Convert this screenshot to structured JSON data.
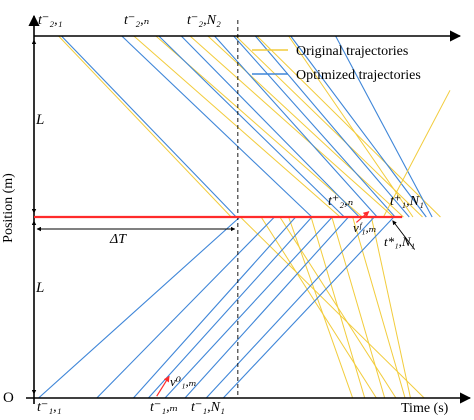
{
  "chart_data": {
    "type": "line",
    "title": "",
    "xlabel": "Time (s)",
    "ylabel": "Position (m)",
    "origin_label": "O",
    "axes": {
      "x_range": [
        0,
        100
      ],
      "y_range": [
        0,
        100
      ],
      "grid": false,
      "ticks_numeric": false
    },
    "legend": {
      "placement": "top-right",
      "entries": [
        {
          "name": "Original trajectories",
          "color": "#f2cc3c"
        },
        {
          "name": "Optimized trajectories",
          "color": "#3f86d8"
        }
      ]
    },
    "colors": {
      "stop_line": "#ff2b2b",
      "axis": "#000000",
      "original": "#f2cc3c",
      "optimized": "#3f86d8"
    },
    "stop_line_y": 50,
    "dashed_x": 49,
    "top_y": 100,
    "annotations": {
      "t_2_1": "t⁻₂,₁",
      "t_2_n": "t⁻₂,ₙ",
      "t_2_N2": "t⁻₂,N₂",
      "t_1_1": "t⁻₁,₁",
      "t_1_m": "t⁻₁,ₘ",
      "t_1_N1": "t⁻₁,N₁",
      "t2n_plus": "t⁺₂,ₙ",
      "t1N1_plus": "t⁺₁,N₁",
      "v1m_f": "vᶠ₁,ₘ",
      "v1m_0": "v⁰₁,ₘ",
      "t1N1_star": "t*₁,N₁",
      "L_top": "L",
      "L_bottom": "L",
      "delta_T": "ΔT"
    },
    "series": [
      {
        "name": "Original trajectories",
        "lines": [
          [
            [
              5.9,
              100
            ],
            [
              47.4,
              50
            ]
          ],
          [
            [
              24,
              100
            ],
            [
              73.6,
              50
            ]
          ],
          [
            [
              29.3,
              100
            ],
            [
              78.9,
              50
            ]
          ],
          [
            [
              37.5,
              100
            ],
            [
              86.4,
              50
            ]
          ],
          [
            [
              41.8,
              100
            ],
            [
              88.8,
              50
            ]
          ],
          [
            [
              48.5,
              100
            ],
            [
              93.4,
              50
            ]
          ],
          [
            [
              53.6,
              100
            ],
            [
              97.7,
              50
            ]
          ],
          [
            [
              61.2,
              100
            ],
            [
              91.1,
              50
            ]
          ],
          [
            [
              49.6,
              50
            ],
            [
              93.8,
              0
            ]
          ],
          [
            [
              54.6,
              50
            ],
            [
              82.3,
              0
            ]
          ],
          [
            [
              59.1,
              50
            ],
            [
              87,
              0
            ]
          ],
          [
            [
              61.2,
              50
            ],
            [
              76.6,
              0
            ]
          ],
          [
            [
              66.6,
              50
            ],
            [
              79.5,
              0
            ]
          ],
          [
            [
              71.6,
              50
            ],
            [
              84.3,
              0
            ]
          ],
          [
            [
              76.6,
              50
            ],
            [
              89.2,
              0
            ]
          ],
          [
            [
              81.1,
              50
            ],
            [
              90.5,
              0
            ]
          ]
        ]
      },
      {
        "name": "Optimized trajectories",
        "lines": [
          [
            [
              6.6,
              100
            ],
            [
              48.6,
              50
            ]
          ],
          [
            [
              21.1,
              100
            ],
            [
              66.8,
              50
            ]
          ],
          [
            [
              30,
              100
            ],
            [
              74.6,
              50
            ]
          ],
          [
            [
              35.4,
              100
            ],
            [
              78.2,
              50
            ]
          ],
          [
            [
              43.4,
              100
            ],
            [
              82.5,
              50
            ]
          ],
          [
            [
              48,
              100
            ],
            [
              86.8,
              50
            ]
          ],
          [
            [
              53.2,
              100
            ],
            [
              90.2,
              50
            ]
          ],
          [
            [
              61.7,
              100
            ],
            [
              94.3,
              50
            ]
          ],
          [
            [
              72.5,
              100
            ],
            [
              95.7,
              50
            ]
          ],
          [
            [
              1.1,
              0
            ],
            [
              49.5,
              50
            ]
          ],
          [
            [
              15.1,
              0
            ],
            [
              57.8,
              50
            ]
          ],
          [
            [
              23.9,
              0
            ],
            [
              62.9,
              50
            ]
          ],
          [
            [
              27.5,
              0
            ],
            [
              66.8,
              50
            ]
          ],
          [
            [
              31.5,
              0
            ],
            [
              71.7,
              50
            ]
          ],
          [
            [
              36.3,
              0
            ],
            [
              75.6,
              50
            ]
          ],
          [
            [
              41.4,
              0
            ],
            [
              81.8,
              50
            ]
          ],
          [
            [
              45.5,
              0
            ],
            [
              86.5,
              50
            ]
          ]
        ]
      }
    ],
    "leaving_lines": [
      {
        "color": "#f2cc3c",
        "points": [
          [
            84,
            50
          ],
          [
            100,
            85
          ]
        ]
      }
    ]
  }
}
